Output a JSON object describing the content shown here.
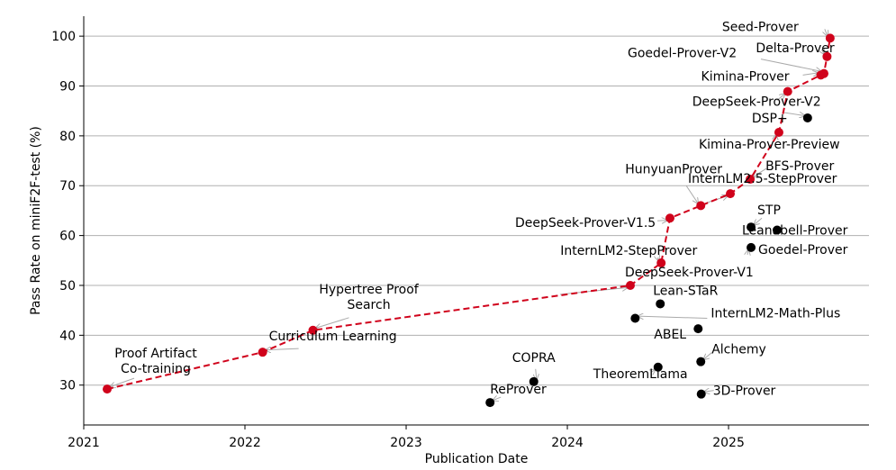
{
  "chart_data": {
    "type": "scatter",
    "xlabel": "Publication Date",
    "ylabel": "Pass Rate on miniF2F-test (%)",
    "xlim": [
      "2021-01-01",
      "2025-11-15"
    ],
    "ylim": [
      22,
      104
    ],
    "x_ticks": [
      "2021",
      "2022",
      "2023",
      "2024",
      "2025"
    ],
    "y_ticks": [
      30,
      40,
      50,
      60,
      70,
      80,
      90,
      100
    ],
    "grid": "horizontal",
    "colors": {
      "frontier": "#d0021b",
      "other": "#000000",
      "arrow": "#aaaaaa",
      "grid": "#b0b0b0"
    },
    "series": [
      {
        "line": "dashed",
        "points": [
          {
            "label": "Proof Artifact\nCo-training",
            "x": "2021-02-23",
            "y": 29.2
          },
          {
            "label": "Curriculum Learning",
            "x": "2022-02-10",
            "y": 36.6
          },
          {
            "label": "Hypertree Proof\nSearch",
            "x": "2022-06-04",
            "y": 41.0
          },
          {
            "label": "DeepSeek-Prover-V1",
            "x": "2024-05-23",
            "y": 50.0
          },
          {
            "label": "InternLM2-StepProver",
            "x": "2024-08-01",
            "y": 54.5
          },
          {
            "label": "DeepSeek-Prover-V1.5",
            "x": "2024-08-21",
            "y": 63.5
          },
          {
            "label": "HunyuanProver",
            "x": "2024-10-30",
            "y": 66.0
          },
          {
            "label": "InternLM2.5-StepProver",
            "x": "2025-01-05",
            "y": 68.4
          },
          {
            "label": "BFS-Prover",
            "x": "2025-02-19",
            "y": 71.3
          },
          {
            "label": "Kimina-Prover-Preview",
            "x": "2025-04-25",
            "y": 80.7
          },
          {
            "label": "DeepSeek-Prover-V2",
            "x": "2025-05-15",
            "y": 88.9
          },
          {
            "label": "Kimina-Prover",
            "x": "2025-07-29",
            "y": 92.2
          },
          {
            "label": "Goedel-Prover-V2",
            "x": "2025-08-05",
            "y": 92.5
          },
          {
            "label": "Delta-Prover",
            "x": "2025-08-12",
            "y": 95.9
          },
          {
            "label": "Seed-Prover",
            "x": "2025-08-19",
            "y": 99.6
          }
        ]
      },
      {
        "line": "none",
        "points": [
          {
            "label": "ReProver",
            "x": "2023-07-10",
            "y": 26.5
          },
          {
            "label": "COPRA",
            "x": "2023-10-17",
            "y": 30.7
          },
          {
            "label": "TheoremLlama",
            "x": "2024-07-25",
            "y": 33.6
          },
          {
            "label": "3D-Prover",
            "x": "2024-10-31",
            "y": 28.2
          },
          {
            "label": "Alchemy",
            "x": "2024-10-30",
            "y": 34.7
          },
          {
            "label": "ABEL",
            "x": "2024-10-24",
            "y": 41.3
          },
          {
            "label": "InternLM2-Math-Plus",
            "x": "2024-06-03",
            "y": 43.4
          },
          {
            "label": "Lean-STaR",
            "x": "2024-07-30",
            "y": 46.3
          },
          {
            "label": "Goedel-Prover",
            "x": "2025-02-21",
            "y": 57.6
          },
          {
            "label": "Leanabell-Prover",
            "x": "2025-04-21",
            "y": 61.1
          },
          {
            "label": "STP",
            "x": "2025-02-21",
            "y": 61.7
          },
          {
            "label": "DSP+",
            "x": "2025-06-29",
            "y": 83.6
          }
        ]
      }
    ]
  }
}
